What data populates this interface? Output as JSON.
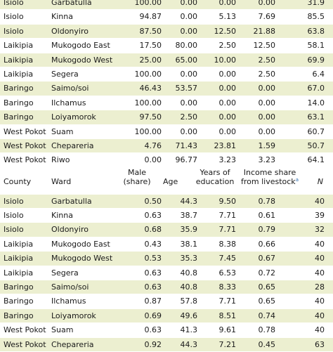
{
  "table1": {
    "rows": [
      [
        "Isiolo",
        "Garbatulla",
        "100.00",
        "0.00",
        "0.00",
        "0.00",
        "31.9"
      ],
      [
        "Isiolo",
        "Kinna",
        "94.87",
        "0.00",
        "5.13",
        "7.69",
        "85.5"
      ],
      [
        "Isiolo",
        "Oldonyiro",
        "87.50",
        "0.00",
        "12.50",
        "21.88",
        "63.8"
      ],
      [
        "Laikipia",
        "Mukogodo East",
        "17.50",
        "80.00",
        "2.50",
        "12.50",
        "58.1"
      ],
      [
        "Laikipia",
        "Mukogodo West",
        "25.00",
        "65.00",
        "10.00",
        "2.50",
        "69.9"
      ],
      [
        "Laikipia",
        "Segera",
        "100.00",
        "0.00",
        "0.00",
        "2.50",
        "6.4"
      ],
      [
        "Baringo",
        "Saimo/soi",
        "46.43",
        "53.57",
        "0.00",
        "0.00",
        "67.0"
      ],
      [
        "Baringo",
        "Ilchamus",
        "100.00",
        "0.00",
        "0.00",
        "0.00",
        "14.0"
      ],
      [
        "Baringo",
        "Loiyamorok",
        "97.50",
        "2.50",
        "0.00",
        "0.00",
        "63.1"
      ],
      [
        "West Pokot",
        "Suam",
        "100.00",
        "0.00",
        "0.00",
        "0.00",
        "60.7"
      ],
      [
        "West Pokot",
        "Chepareria",
        "4.76",
        "71.43",
        "23.81",
        "1.59",
        "50.7"
      ],
      [
        "West Pokot",
        "Riwo",
        "0.00",
        "96.77",
        "3.23",
        "3.23",
        "64.1"
      ]
    ]
  },
  "table2": {
    "headers": {
      "county": "County",
      "ward": "Ward",
      "male_line1": "Male",
      "male_line2": "(share)",
      "age": "Age",
      "edu_line1": "Years of",
      "edu_line2": "education",
      "income_line1": "Income share",
      "income_line2": "from livestock",
      "income_footnote": "a",
      "n": "N"
    },
    "rows": [
      [
        "Isiolo",
        "Garbatulla",
        "0.50",
        "44.3",
        "9.50",
        "0.78",
        "40"
      ],
      [
        "Isiolo",
        "Kinna",
        "0.63",
        "38.7",
        "7.71",
        "0.61",
        "39"
      ],
      [
        "Isiolo",
        "Oldonyiro",
        "0.68",
        "35.9",
        "7.71",
        "0.79",
        "32"
      ],
      [
        "Laikipia",
        "Mukogodo East",
        "0.43",
        "38.1",
        "8.38",
        "0.66",
        "40"
      ],
      [
        "Laikipia",
        "Mukogodo West",
        "0.53",
        "35.3",
        "7.45",
        "0.67",
        "40"
      ],
      [
        "Laikipia",
        "Segera",
        "0.63",
        "40.8",
        "6.53",
        "0.72",
        "40"
      ],
      [
        "Baringo",
        "Saimo/soi",
        "0.63",
        "40.8",
        "8.33",
        "0.65",
        "28"
      ],
      [
        "Baringo",
        "Ilchamus",
        "0.87",
        "57.8",
        "7.71",
        "0.65",
        "40"
      ],
      [
        "Baringo",
        "Loiyamorok",
        "0.69",
        "49.6",
        "8.51",
        "0.74",
        "40"
      ],
      [
        "West Pokot",
        "Suam",
        "0.63",
        "41.3",
        "9.61",
        "0.78",
        "40"
      ],
      [
        "West Pokot",
        "Chepareria",
        "0.92",
        "44.3",
        "7.21",
        "0.45",
        "63"
      ]
    ]
  }
}
